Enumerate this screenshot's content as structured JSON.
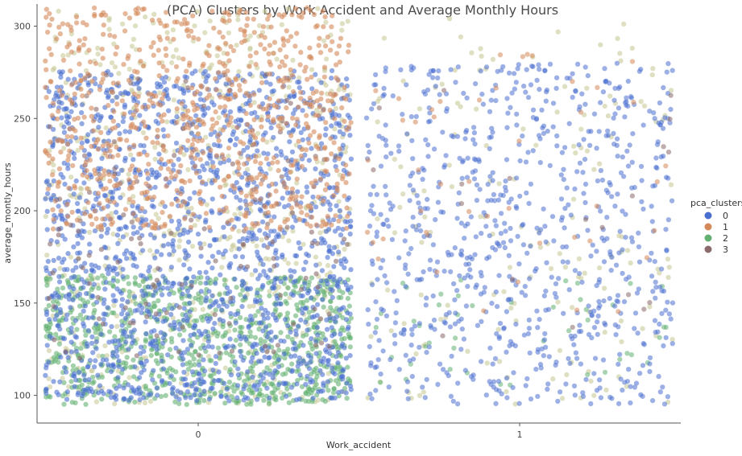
{
  "chart_data": {
    "type": "scatter",
    "title": "(PCA) Clusters by Work Accident and Average Monthly Hours",
    "xlabel": "Work_accident",
    "ylabel": "average_montly_hours",
    "x_categories": [
      "0",
      "1"
    ],
    "jitter": true,
    "y_ticks": [
      100,
      150,
      200,
      250,
      300
    ],
    "ylim": [
      85,
      312
    ],
    "grid": false,
    "legend": {
      "title": "pca_clusters",
      "placement": "right",
      "entries": [
        "0",
        "1",
        "2",
        "3"
      ]
    },
    "colors": {
      "0": "#4a6fd0",
      "1": "#d4895a",
      "2": "#63b072",
      "3": "#8a6a6a",
      "beige_markers": "#c9c99a"
    },
    "series": [
      {
        "name": "0",
        "points": {
          "0": {
            "count": 1700,
            "y_range": [
              97,
              276
            ]
          },
          "1": {
            "count": 820,
            "y_range": [
              95,
              280
            ]
          }
        }
      },
      {
        "name": "1",
        "points": {
          "0": {
            "count": 800,
            "y_range": [
              190,
              310
            ]
          },
          "1": {
            "count": 45,
            "y_range": [
              140,
              285
            ]
          }
        }
      },
      {
        "name": "2",
        "points": {
          "0": {
            "count": 900,
            "y_range": [
              95,
              165
            ]
          },
          "1": {
            "count": 45,
            "y_range": [
              100,
              165
            ]
          }
        }
      },
      {
        "name": "3",
        "points": {
          "0": {
            "count": 150,
            "y_range": [
              120,
              275
            ]
          },
          "1": {
            "count": 20,
            "y_range": [
              130,
              270
            ]
          }
        }
      }
    ]
  }
}
